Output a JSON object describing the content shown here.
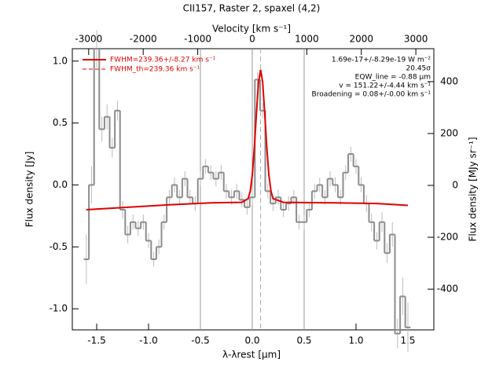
{
  "chart_data": {
    "type": "step",
    "title": "CII157, Raster 2, spaxel (4,2)",
    "xlabel": "λ-λrest [μm]",
    "ylabel": "Flux density [Jy]",
    "x2label": "Velocity [km s⁻¹]",
    "y2label": "Flux density [MJy sr⁻¹]",
    "xlim": [
      -1.735,
      1.75
    ],
    "ylim": [
      -1.17,
      1.1
    ],
    "x2lim": [
      -3300,
      3330
    ],
    "y2lim": [
      -557,
      527
    ],
    "xticks": [
      -1.5,
      {
        "value": -1.0,
        "label": "-1.0"
      },
      -0.5,
      {
        "value": 0.0,
        "label": "0.0"
      },
      0.5,
      {
        "value": 1.0,
        "label": "1.0"
      },
      1.5
    ],
    "yticks": [
      {
        "value": -1.0,
        "label": "-1.0"
      },
      -0.5,
      {
        "value": 0.0,
        "label": "0.0"
      },
      0.5,
      {
        "value": 1.0,
        "label": "1.0"
      }
    ],
    "x2ticks": [
      -3000,
      -2000,
      -1000,
      0,
      1000,
      2000,
      3000
    ],
    "y2ticks": [
      -400,
      -200,
      0,
      200,
      400
    ],
    "vlines": [
      -0.5,
      0,
      0.5
    ],
    "line_center": 0.08,
    "spectrum": {
      "color": "#8c8c8c",
      "x": [
        -1.6,
        -1.55,
        -1.5,
        -1.45,
        -1.4,
        -1.35,
        -1.3,
        -1.25,
        -1.2,
        -1.15,
        -1.1,
        -1.05,
        -1.0,
        -0.95,
        -0.9,
        -0.85,
        -0.8,
        -0.75,
        -0.7,
        -0.65,
        -0.6,
        -0.55,
        -0.5,
        -0.45,
        -0.4,
        -0.35,
        -0.3,
        -0.25,
        -0.2,
        -0.15,
        -0.1,
        -0.05,
        0.0,
        0.05,
        0.1,
        0.15,
        0.2,
        0.25,
        0.3,
        0.35,
        0.4,
        0.45,
        0.5,
        0.55,
        0.6,
        0.65,
        0.7,
        0.75,
        0.8,
        0.85,
        0.9,
        0.95,
        1.0,
        1.05,
        1.1,
        1.15,
        1.2,
        1.25,
        1.3,
        1.35,
        1.4,
        1.45,
        1.5
      ],
      "values": [
        -0.6,
        0.0,
        1.1,
        0.45,
        0.55,
        0.3,
        0.6,
        -0.2,
        -0.4,
        -0.3,
        -0.35,
        -0.3,
        -0.45,
        -0.6,
        -0.5,
        -0.3,
        -0.1,
        0.0,
        -0.1,
        0.05,
        -0.1,
        -0.15,
        0.05,
        0.15,
        0.1,
        0.05,
        0.1,
        -0.05,
        -0.1,
        -0.05,
        -0.12,
        -0.18,
        -0.1,
        0.85,
        0.6,
        -0.05,
        -0.15,
        -0.1,
        -0.2,
        -0.15,
        -0.1,
        -0.3,
        -0.3,
        -0.2,
        -0.05,
        0.0,
        -0.1,
        0.05,
        0.0,
        -0.1,
        0.1,
        0.25,
        0.15,
        0.0,
        -0.15,
        -0.3,
        -0.45,
        -0.3,
        -0.55,
        -0.4,
        -1.2,
        -0.9,
        -1.15
      ],
      "errors": [
        0.2,
        0.15,
        0.15,
        0.1,
        0.1,
        0.08,
        0.08,
        0.07,
        0.07,
        0.06,
        0.06,
        0.06,
        0.06,
        0.06,
        0.06,
        0.06,
        0.06,
        0.06,
        0.06,
        0.06,
        0.06,
        0.06,
        0.06,
        0.06,
        0.06,
        0.06,
        0.06,
        0.06,
        0.06,
        0.06,
        0.06,
        0.06,
        0.06,
        0.06,
        0.06,
        0.06,
        0.06,
        0.06,
        0.06,
        0.06,
        0.06,
        0.06,
        0.06,
        0.06,
        0.06,
        0.06,
        0.06,
        0.06,
        0.06,
        0.06,
        0.06,
        0.06,
        0.06,
        0.06,
        0.07,
        0.07,
        0.07,
        0.08,
        0.08,
        0.1,
        0.12,
        0.15,
        0.2
      ]
    },
    "series": [
      {
        "name": "FWHM=239.36+/-8.27 km s⁻¹",
        "color": "#e00000",
        "dash": false,
        "x": [
          -1.6,
          -1.2,
          -0.8,
          -0.4,
          -0.1,
          -0.04,
          -0.02,
          0,
          0.02,
          0.04,
          0.06,
          0.08,
          0.1,
          0.12,
          0.14,
          0.16,
          0.18,
          0.2,
          0.3,
          0.8,
          1.2,
          1.5
        ],
        "values": [
          -0.2,
          -0.18,
          -0.16,
          -0.145,
          -0.14,
          -0.11,
          -0.05,
          0.08,
          0.3,
          0.58,
          0.83,
          0.93,
          0.83,
          0.58,
          0.3,
          0.08,
          -0.05,
          -0.11,
          -0.14,
          -0.145,
          -0.15,
          -0.165
        ]
      },
      {
        "name": "FWHM_th=239.36 km s⁻¹",
        "color": "#e00000",
        "dash": true,
        "x": [
          -0.1,
          -0.04,
          -0.02,
          0,
          0.02,
          0.04,
          0.06,
          0.08,
          0.1,
          0.12,
          0.14,
          0.16,
          0.18,
          0.2,
          0.3
        ],
        "values": [
          -0.14,
          -0.11,
          -0.05,
          0.08,
          0.3,
          0.58,
          0.83,
          0.93,
          0.83,
          0.58,
          0.3,
          0.08,
          -0.05,
          -0.11,
          -0.14
        ]
      }
    ],
    "annotations": [
      "1.69e-17+/-8.29e-19 W m⁻²",
      "20.45σ",
      "EQW_line = -0.88 μm",
      "v = 151.22+/-4.44 km s⁻¹",
      "Broadening = 0.08+/-0.00 km s⁻¹"
    ]
  }
}
